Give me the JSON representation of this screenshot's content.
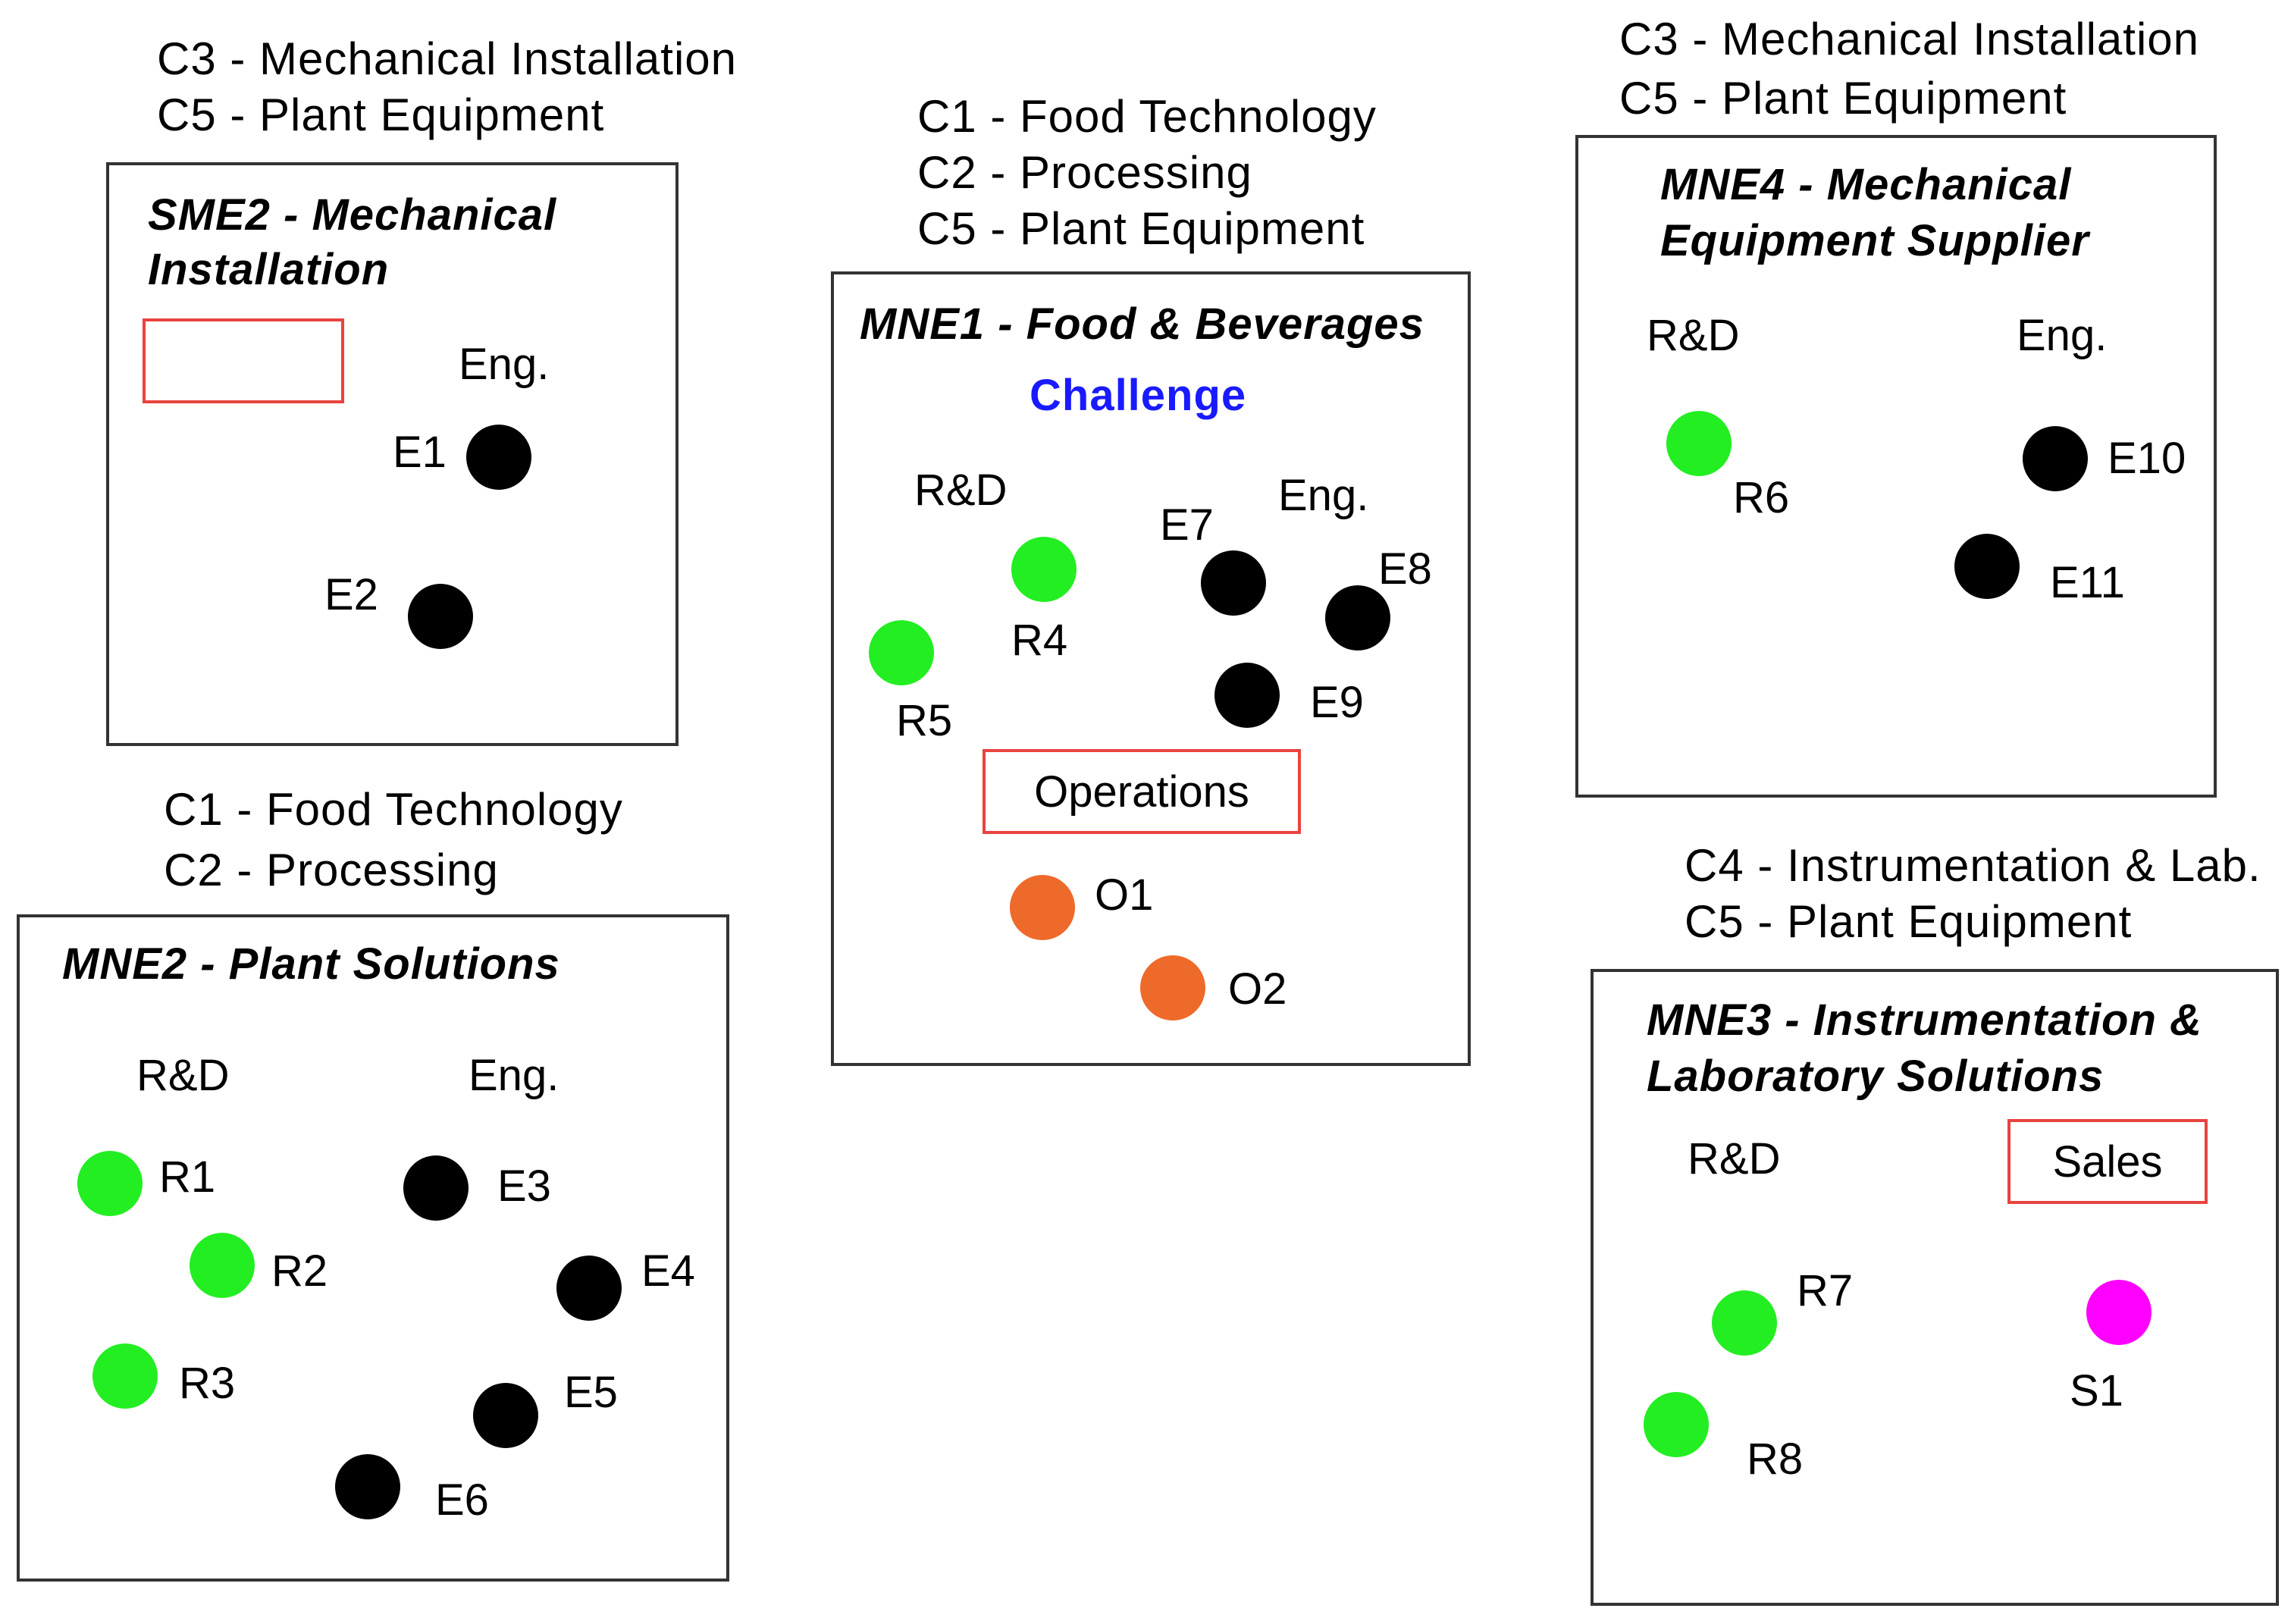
{
  "companies": {
    "sme2": {
      "competences": [
        "C3 - Mechanical Installation",
        "C5 - Plant Equipment"
      ],
      "title_line1": "SME2 - Mechanical",
      "title_line2": "Installation",
      "dept_eng": "Eng.",
      "nodes": {
        "e1": "E1",
        "e2": "E2"
      }
    },
    "mne1": {
      "competences": [
        "C1 - Food Technology",
        "C2 - Processing",
        "C5 - Plant Equipment"
      ],
      "title": "MNE1 - Food & Beverages",
      "challenge": "Challenge",
      "dept_rd": "R&D",
      "dept_eng": "Eng.",
      "operations": "Operations",
      "nodes": {
        "r4": "R4",
        "r5": "R5",
        "e7": "E7",
        "e8": "E8",
        "e9": "E9",
        "o1": "O1",
        "o2": "O2"
      }
    },
    "mne4": {
      "competences": [
        "C3 - Mechanical Installation",
        "C5 - Plant Equipment"
      ],
      "title_line1": "MNE4 - Mechanical",
      "title_line2": "Equipment Supplier",
      "dept_rd": "R&D",
      "dept_eng": "Eng.",
      "nodes": {
        "r6": "R6",
        "e10": "E10",
        "e11": "E11"
      }
    },
    "mne2": {
      "competences": [
        "C1 - Food Technology",
        "C2 - Processing"
      ],
      "title": "MNE2 - Plant Solutions",
      "dept_rd": "R&D",
      "dept_eng": "Eng.",
      "nodes": {
        "r1": "R1",
        "r2": "R2",
        "r3": "R3",
        "e3": "E3",
        "e4": "E4",
        "e5": "E5",
        "e6": "E6"
      }
    },
    "mne3": {
      "competences": [
        "C4 - Instrumentation & Lab.",
        "C5 - Plant Equipment"
      ],
      "title_line1": "MNE3 - Instrumentation &",
      "title_line2": "Laboratory Solutions",
      "dept_rd": "R&D",
      "sales": "Sales",
      "nodes": {
        "r7": "R7",
        "r8": "R8",
        "s1": "S1"
      }
    }
  },
  "colors": {
    "rd": "#22ee22",
    "eng": "#000000",
    "operations": "#ee6a2a",
    "sales": "#ff00ff",
    "dept_box_border": "#e8443f",
    "challenge": "#1a1aff"
  }
}
